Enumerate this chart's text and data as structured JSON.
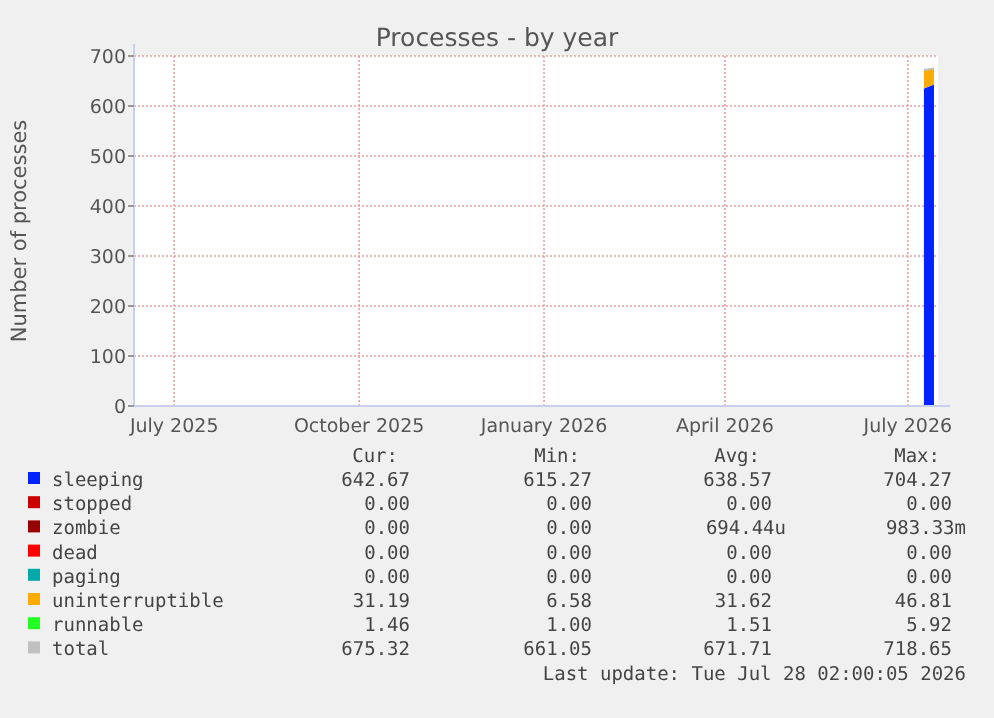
{
  "chart_data": {
    "type": "area",
    "title": "Processes - by year",
    "ylabel": "Number of processes",
    "stacked": true,
    "grid": true,
    "legend": "bottom",
    "xlim": [
      "2025-06-25",
      "2026-07-30"
    ],
    "xticks": [
      {
        "value": "2025-07-15",
        "label": "July 2025"
      },
      {
        "value": "2025-10-15",
        "label": "October 2025"
      },
      {
        "value": "2026-01-15",
        "label": "January 2026"
      },
      {
        "value": "2026-04-15",
        "label": "April 2026"
      },
      {
        "value": "2026-07-15",
        "label": "July 2026"
      }
    ],
    "ylim": [
      0,
      700
    ],
    "yticks": [
      0,
      100,
      200,
      300,
      400,
      500,
      600,
      700
    ],
    "x": [
      "2026-07-23",
      "2026-07-28"
    ],
    "series": [
      {
        "name": "sleeping",
        "color": "#0022ff",
        "values": [
          635,
          643
        ]
      },
      {
        "name": "stopped",
        "color": "#cc0000",
        "values": [
          null,
          null
        ]
      },
      {
        "name": "zombie",
        "color": "#990000",
        "values": [
          null,
          null
        ]
      },
      {
        "name": "dead",
        "color": "#ff0000",
        "values": [
          null,
          null
        ]
      },
      {
        "name": "paging",
        "color": "#00aaaa",
        "values": [
          null,
          null
        ]
      },
      {
        "name": "uninterruptible",
        "color": "#ffaa00",
        "values": [
          36,
          31
        ]
      },
      {
        "name": "runnable",
        "color": "#22ff22",
        "values": [
          null,
          null
        ]
      },
      {
        "name": "total",
        "color": "#c0c0c0",
        "type": "line",
        "values": [
          672,
          675
        ]
      }
    ],
    "annotations": [
      "Cur:",
      "Min:",
      "Avg:",
      "Max:",
      "642.67",
      "615.27",
      "638.57",
      "704.27",
      "0.00",
      "0.00",
      "0.00",
      "0.00",
      "0.00",
      "0.00",
      "694.44u",
      "983.33m",
      "0.00",
      "0.00",
      "0.00",
      "0.00",
      "0.00",
      "0.00",
      "0.00",
      "0.00",
      "31.19",
      "6.58",
      "31.62",
      "46.81",
      "1.46",
      "1.00",
      "1.51",
      "5.92",
      "675.32",
      "661.05",
      "671.71",
      "718.65",
      "Last update: Tue Jul 28 02:00:05 2026"
    ]
  }
}
